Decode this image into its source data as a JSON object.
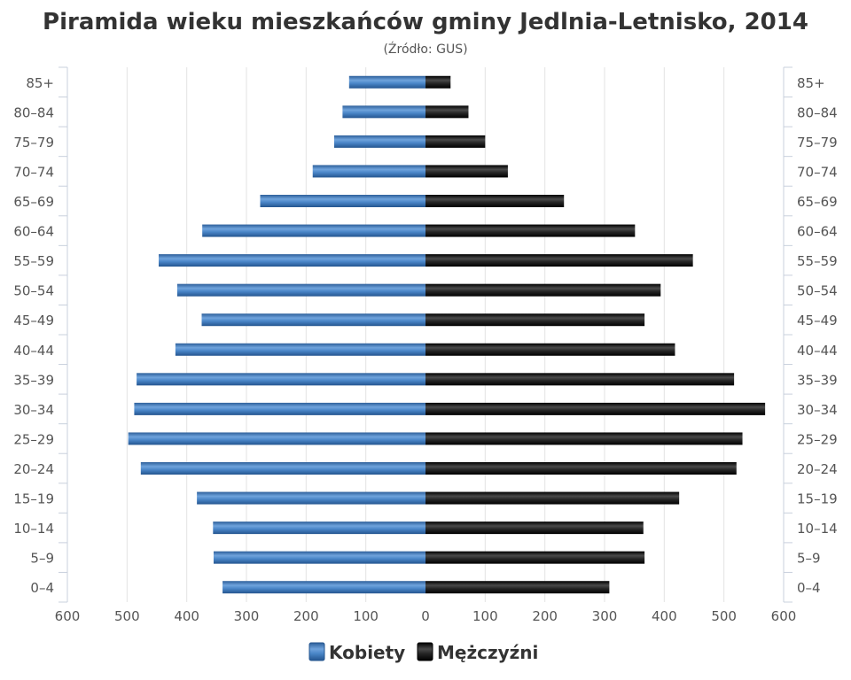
{
  "chart_data": {
    "type": "bar",
    "orientation": "horizontal-population-pyramid",
    "title": "Piramida wieku mieszkańców gminy Jedlnia-Letnisko, 2014",
    "subtitle": "(Źródło: GUS)",
    "categories": [
      "0–4",
      "5–9",
      "10–14",
      "15–19",
      "20–24",
      "25–29",
      "30–34",
      "35–39",
      "40–44",
      "45–49",
      "50–54",
      "55–59",
      "60–64",
      "65–69",
      "70–74",
      "75–79",
      "80–84",
      "85+"
    ],
    "series": [
      {
        "name": "Kobiety",
        "color": "#3a74b7",
        "values": [
          340,
          355,
          356,
          383,
          477,
          498,
          488,
          484,
          419,
          375,
          416,
          447,
          374,
          277,
          189,
          153,
          139,
          128
        ]
      },
      {
        "name": "Mężczyźni",
        "color": "#1f1f1f",
        "values": [
          308,
          367,
          365,
          425,
          521,
          531,
          569,
          517,
          418,
          367,
          394,
          448,
          351,
          232,
          138,
          100,
          72,
          42
        ]
      }
    ],
    "xlim": [
      -600,
      600
    ],
    "x_ticks": [
      "600",
      "500",
      "400",
      "300",
      "200",
      "100",
      "0",
      "100",
      "200",
      "300",
      "400",
      "500",
      "600"
    ],
    "grid": true,
    "legend_position": "bottom-center"
  }
}
